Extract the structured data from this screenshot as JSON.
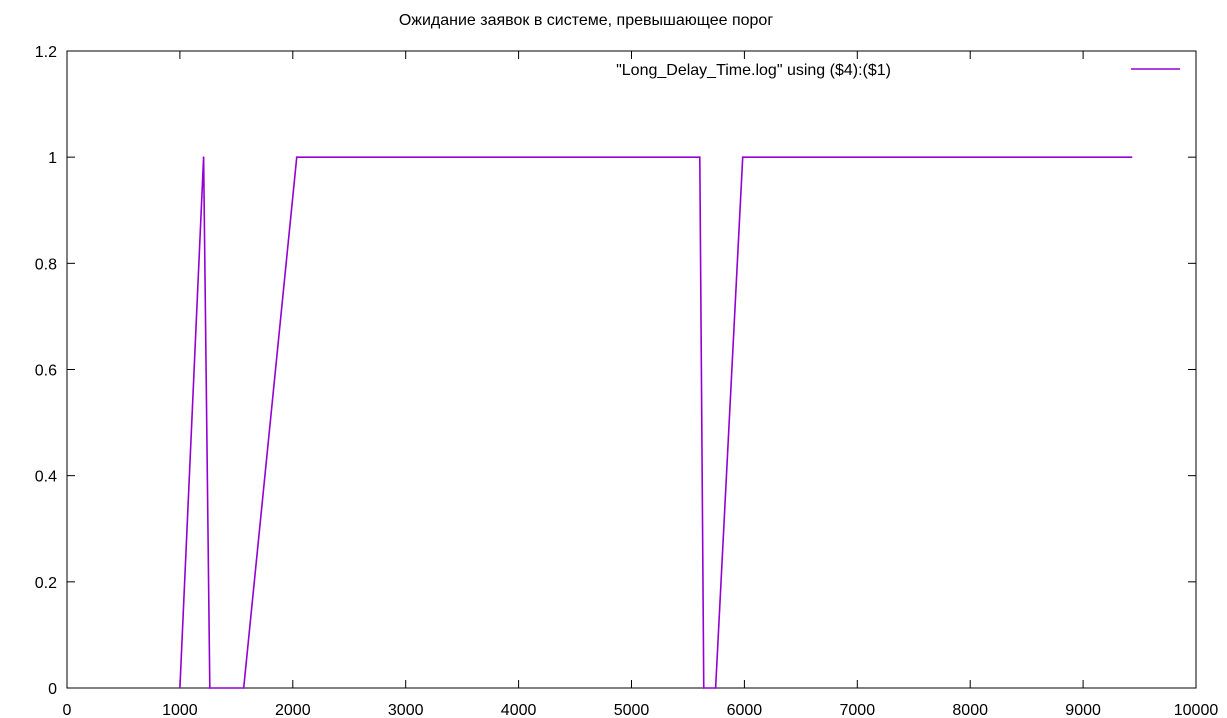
{
  "chart_data": {
    "type": "line",
    "title": "Ожидание заявок в системе, превышающее порог",
    "xlabel": "",
    "ylabel": "",
    "xlim": [
      0,
      10000
    ],
    "ylim": [
      0,
      1.2
    ],
    "x_ticks": [
      0,
      1000,
      2000,
      3000,
      4000,
      5000,
      6000,
      7000,
      8000,
      9000,
      10000
    ],
    "y_ticks": [
      0,
      0.2,
      0.4,
      0.6,
      0.8,
      1,
      1.2
    ],
    "x_tick_labels": [
      "0",
      "1000",
      "2000",
      "3000",
      "4000",
      "5000",
      "6000",
      "7000",
      "8000",
      "9000",
      "10000"
    ],
    "y_tick_labels": [
      "0",
      "0.2",
      "0.4",
      "0.6",
      "0.8",
      "1",
      "1.2"
    ],
    "grid": false,
    "legend_position": "top-right",
    "series": [
      {
        "name": "\"Long_Delay_Time.log\" using ($4):($1)",
        "color": "#9400d3",
        "x": [
          1000,
          1210,
          1265,
          1565,
          2035,
          5605,
          5640,
          5745,
          5985,
          9430
        ],
        "y": [
          0,
          1,
          0,
          0,
          1,
          1,
          0,
          0,
          1,
          1
        ]
      }
    ]
  }
}
